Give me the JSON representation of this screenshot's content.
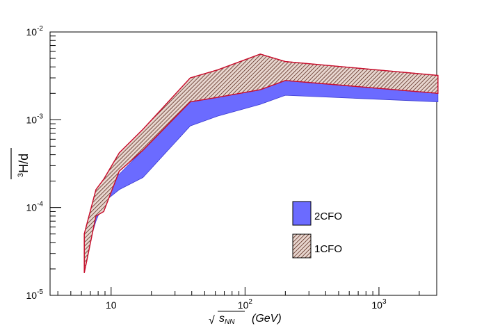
{
  "chart_data": {
    "type": "area",
    "x_scale": "log",
    "y_scale": "log",
    "xlim": [
      3.5,
      2700
    ],
    "ylim": [
      1e-05,
      0.01
    ],
    "xlabel": "√s_NN  (GeV)",
    "xlabel_parts": {
      "radical": "√",
      "base": "s",
      "sub": "NN",
      "unit": "(GeV)"
    },
    "ylabel": "³H/d",
    "ylabel_parts": {
      "sup": "3",
      "main": "H/d"
    },
    "x_ticks": [
      {
        "value": 10,
        "base": "10",
        "exp": ""
      },
      {
        "value": 100,
        "base": "10",
        "exp": "2"
      },
      {
        "value": 1000,
        "base": "10",
        "exp": "3"
      }
    ],
    "y_ticks": [
      {
        "value": 1e-05,
        "base": "10",
        "exp": "-5"
      },
      {
        "value": 0.0001,
        "base": "10",
        "exp": "-4"
      },
      {
        "value": 0.001,
        "base": "10",
        "exp": "-3"
      },
      {
        "value": 0.01,
        "base": "10",
        "exp": "-2"
      }
    ],
    "legend_position": "bottom-right",
    "series": [
      {
        "name": "2CFO",
        "style": "solid",
        "color": "#6b6bff",
        "x": [
          6.3,
          7.7,
          8.8,
          11.5,
          17.3,
          39,
          62.4,
          130,
          200,
          2760
        ],
        "lower": [
          2.5e-05,
          7e-05,
          0.000115,
          0.00016,
          0.00022,
          0.00085,
          0.0011,
          0.0015,
          0.0019,
          0.0016
        ],
        "upper": [
          4.5e-05,
          9e-05,
          0.00016,
          0.00024,
          0.00045,
          0.0016,
          0.0028,
          0.004,
          0.0032,
          0.0022
        ]
      },
      {
        "name": "1CFO",
        "style": "hatched",
        "color": "#c8102e",
        "x": [
          6.3,
          7.7,
          8.8,
          11.5,
          17.3,
          39,
          62.4,
          130,
          200,
          2760
        ],
        "lower": [
          1.8e-05,
          8e-05,
          9e-05,
          0.00026,
          0.00045,
          0.0016,
          0.0018,
          0.0022,
          0.0028,
          0.002
        ],
        "upper": [
          5e-05,
          0.00016,
          0.00021,
          0.00042,
          0.00078,
          0.003,
          0.0037,
          0.0056,
          0.0046,
          0.0032
        ]
      }
    ]
  }
}
